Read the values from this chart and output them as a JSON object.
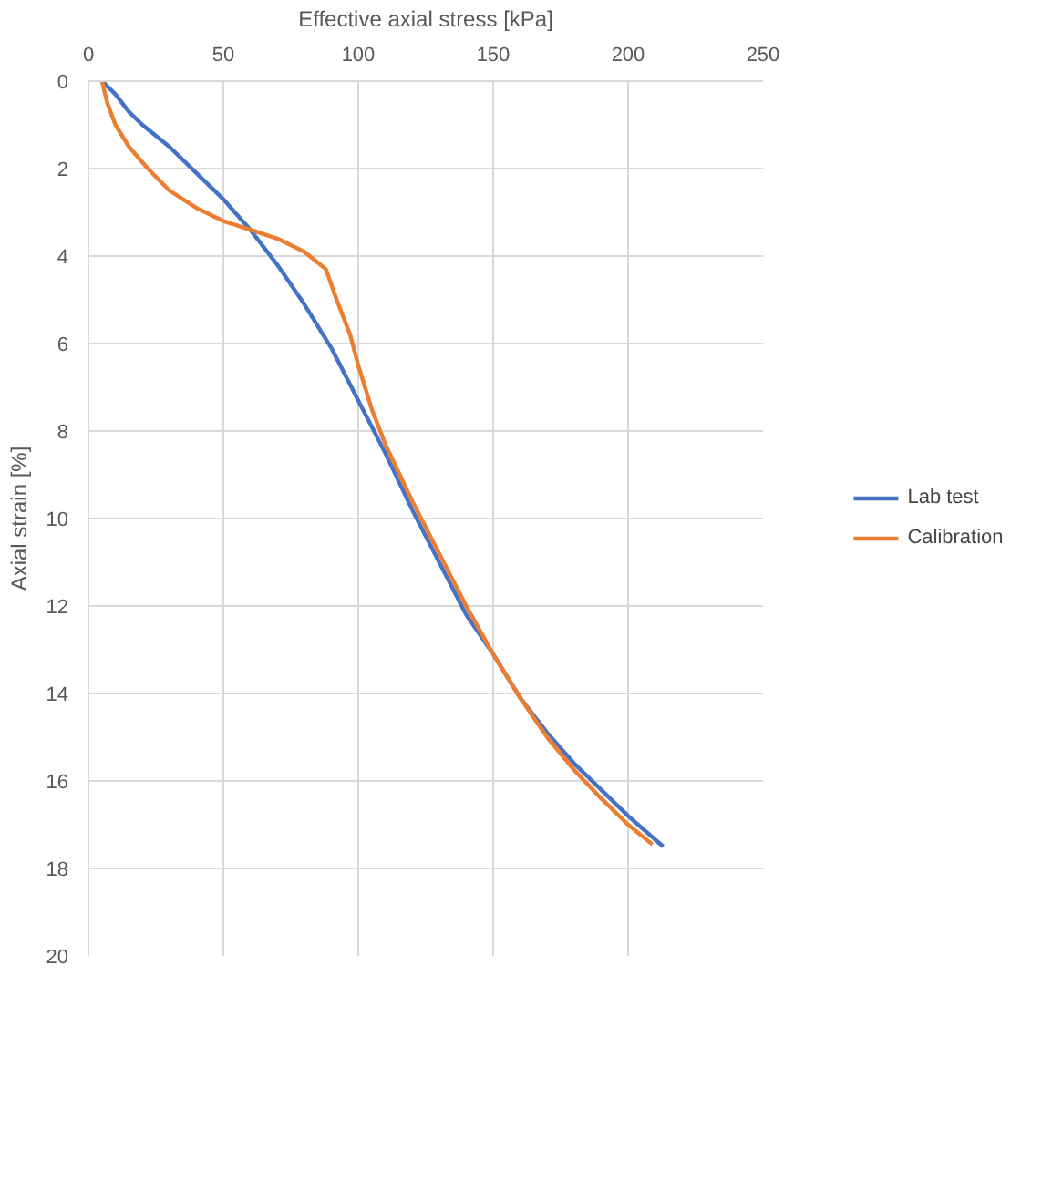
{
  "chart_data": {
    "type": "line",
    "xlabel": "Effective axial stress [kPa]",
    "ylabel": "Axial strain [%]",
    "xlim": [
      0,
      250
    ],
    "xticks": [
      0,
      50,
      100,
      150,
      200,
      250
    ],
    "ylim": [
      20,
      0
    ],
    "yticks": [
      0,
      2,
      4,
      6,
      8,
      10,
      12,
      14,
      16,
      18,
      20
    ],
    "grid": true,
    "legend": "right",
    "marker": "none",
    "line_style": "solid",
    "series": [
      {
        "name": "Lab test",
        "color": "#4472c4",
        "x": [
          5,
          10,
          15,
          20,
          30,
          40,
          50,
          60,
          70,
          80,
          90,
          100,
          110,
          120,
          130,
          140,
          150,
          160,
          170,
          180,
          190,
          200,
          213
        ],
        "values": [
          0,
          0.3,
          0.7,
          1.0,
          1.5,
          2.1,
          2.7,
          3.4,
          4.2,
          5.1,
          6.1,
          7.3,
          8.5,
          9.8,
          11.0,
          12.2,
          13.1,
          14.1,
          14.9,
          15.6,
          16.2,
          16.8,
          17.5
        ]
      },
      {
        "name": "Calibration",
        "color": "#ed7d31",
        "x": [
          5,
          7,
          10,
          15,
          22,
          30,
          40,
          50,
          60,
          70,
          80,
          88,
          92,
          97,
          100,
          105,
          110,
          120,
          130,
          140,
          150,
          160,
          170,
          180,
          190,
          200,
          209
        ],
        "values": [
          0,
          0.5,
          1.0,
          1.5,
          2.0,
          2.5,
          2.9,
          3.2,
          3.4,
          3.6,
          3.9,
          4.3,
          5.0,
          5.8,
          6.5,
          7.5,
          8.3,
          9.6,
          10.8,
          12.0,
          13.1,
          14.1,
          15.0,
          15.75,
          16.4,
          17.0,
          17.45
        ]
      }
    ]
  }
}
